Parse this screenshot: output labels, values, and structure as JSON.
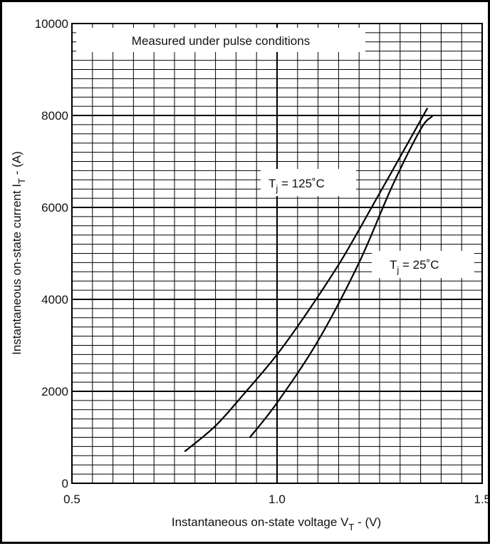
{
  "chart_data": {
    "type": "line",
    "title": "",
    "annotation": "Measured under pulse conditions",
    "xlabel": {
      "text": "Instantaneous on-state voltage V",
      "sub": "T",
      "suffix": " - (V)"
    },
    "ylabel": {
      "text": "Instantaneous on-state current I",
      "sub": "T",
      "suffix": " - (A)"
    },
    "xlim": [
      0.5,
      1.5
    ],
    "ylim": [
      0,
      10000
    ],
    "x_ticks": [
      0.5,
      1.0,
      1.5
    ],
    "x_tick_labels": [
      "0.5",
      "1.0",
      "1.5"
    ],
    "y_ticks": [
      0,
      2000,
      4000,
      6000,
      8000,
      10000
    ],
    "y_tick_labels": [
      "0",
      "2000",
      "4000",
      "6000",
      "8000",
      "10000"
    ],
    "minor_x_step": 0.05,
    "minor_y_step": 200,
    "grid": true,
    "series": [
      {
        "name": "Tj = 125°C",
        "label": {
          "base": "T",
          "sub": "j",
          "rest": " = 125˚C"
        },
        "x": [
          0.776,
          0.85,
          0.92,
          1.0,
          1.08,
          1.16,
          1.24,
          1.3,
          1.366
        ],
        "y": [
          700,
          1250,
          1950,
          2800,
          3800,
          4900,
          6150,
          7100,
          8150
        ]
      },
      {
        "name": "Tj = 25°C",
        "label": {
          "base": "T",
          "sub": "j",
          "rest": " = 25˚C"
        },
        "x": [
          0.934,
          1.0,
          1.1,
          1.2,
          1.28,
          1.35,
          1.378
        ],
        "y": [
          1000,
          1750,
          3100,
          4800,
          6450,
          7700,
          7980
        ]
      }
    ]
  }
}
